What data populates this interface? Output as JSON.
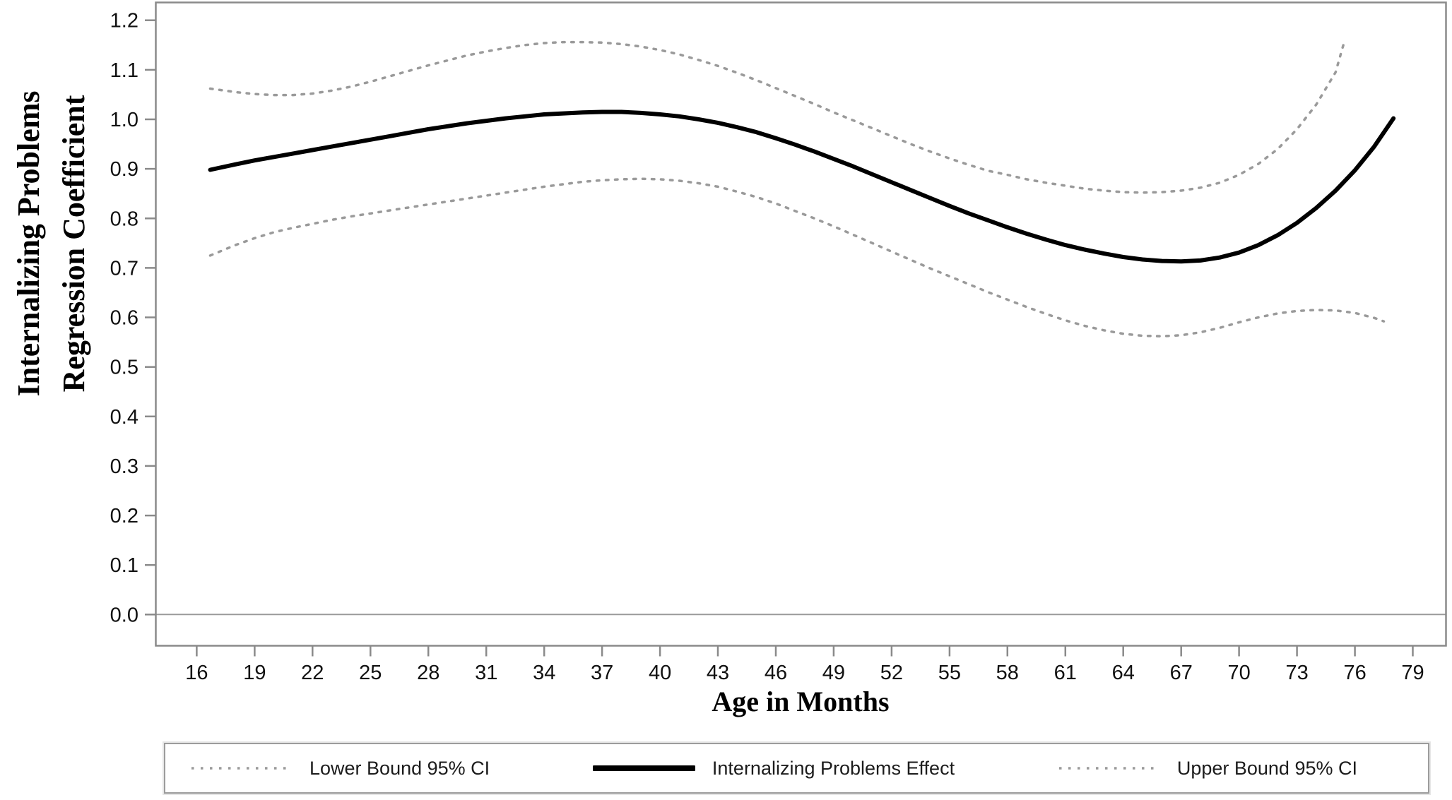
{
  "figure": {
    "background": "#ffffff"
  },
  "chart_data": {
    "type": "line",
    "title": "",
    "xlabel": "Age in Months",
    "ylabel": "Internalizing Problems Regression Coefficient",
    "ylabel_lines": [
      "Internalizing Problems",
      "Regression Coefficient"
    ],
    "x_ticks": [
      16,
      19,
      22,
      25,
      28,
      31,
      34,
      37,
      40,
      43,
      46,
      49,
      52,
      55,
      58,
      61,
      64,
      67,
      70,
      73,
      76,
      79
    ],
    "y_ticks": [
      "0.0",
      "0.1",
      "0.2",
      "0.3",
      "0.4",
      "0.5",
      "0.6",
      "0.7",
      "0.8",
      "0.9",
      "1.0",
      "1.1",
      "1.2"
    ],
    "xlim": [
      13.88,
      80.72
    ],
    "ylim": [
      -0.063,
      1.236
    ],
    "baseline": 0.0,
    "grid": "off",
    "legend_position": "bottom",
    "colors": {
      "frame": "#8a8a8a",
      "baseline": "#9a9a9a",
      "tick_label": "#111111",
      "ci_line": "#9a9a9a",
      "effect_line": "#000000"
    },
    "series": [
      {
        "name": "Lower Bound 95% CI",
        "style": "dotted",
        "color": "#9a9a9a",
        "width": 3.5,
        "points": [
          [
            16.7,
            0.725
          ],
          [
            18,
            0.746
          ],
          [
            19,
            0.76
          ],
          [
            20,
            0.772
          ],
          [
            21,
            0.781
          ],
          [
            22,
            0.789
          ],
          [
            23,
            0.797
          ],
          [
            24,
            0.804
          ],
          [
            25,
            0.81
          ],
          [
            26,
            0.816
          ],
          [
            27,
            0.822
          ],
          [
            28,
            0.828
          ],
          [
            29,
            0.834
          ],
          [
            30,
            0.84
          ],
          [
            31,
            0.846
          ],
          [
            32,
            0.852
          ],
          [
            33,
            0.858
          ],
          [
            34,
            0.864
          ],
          [
            35,
            0.869
          ],
          [
            36,
            0.874
          ],
          [
            37,
            0.877
          ],
          [
            38,
            0.879
          ],
          [
            39,
            0.88
          ],
          [
            40,
            0.879
          ],
          [
            41,
            0.876
          ],
          [
            42,
            0.871
          ],
          [
            43,
            0.864
          ],
          [
            44,
            0.854
          ],
          [
            45,
            0.843
          ],
          [
            46,
            0.83
          ],
          [
            47,
            0.815
          ],
          [
            48,
            0.8
          ],
          [
            49,
            0.784
          ],
          [
            50,
            0.767
          ],
          [
            51,
            0.75
          ],
          [
            52,
            0.733
          ],
          [
            53,
            0.716
          ],
          [
            54,
            0.699
          ],
          [
            55,
            0.683
          ],
          [
            56,
            0.667
          ],
          [
            57,
            0.651
          ],
          [
            58,
            0.636
          ],
          [
            59,
            0.621
          ],
          [
            60,
            0.607
          ],
          [
            61,
            0.594
          ],
          [
            62,
            0.583
          ],
          [
            63,
            0.574
          ],
          [
            64,
            0.567
          ],
          [
            65,
            0.563
          ],
          [
            66,
            0.562
          ],
          [
            67,
            0.564
          ],
          [
            68,
            0.57
          ],
          [
            69,
            0.579
          ],
          [
            70,
            0.59
          ],
          [
            71,
            0.6
          ],
          [
            72,
            0.608
          ],
          [
            73,
            0.613
          ],
          [
            74,
            0.615
          ],
          [
            75,
            0.614
          ],
          [
            76,
            0.609
          ],
          [
            77,
            0.599
          ],
          [
            77.5,
            0.592
          ]
        ]
      },
      {
        "name": "Internalizing Problems Effect",
        "style": "solid",
        "color": "#000000",
        "width": 6,
        "points": [
          [
            16.7,
            0.898
          ],
          [
            18,
            0.909
          ],
          [
            19,
            0.917
          ],
          [
            20,
            0.924
          ],
          [
            21,
            0.931
          ],
          [
            22,
            0.938
          ],
          [
            23,
            0.945
          ],
          [
            24,
            0.952
          ],
          [
            25,
            0.959
          ],
          [
            26,
            0.966
          ],
          [
            27,
            0.973
          ],
          [
            28,
            0.98
          ],
          [
            29,
            0.986
          ],
          [
            30,
            0.992
          ],
          [
            31,
            0.997
          ],
          [
            32,
            1.002
          ],
          [
            33,
            1.006
          ],
          [
            34,
            1.01
          ],
          [
            35,
            1.012
          ],
          [
            36,
            1.014
          ],
          [
            37,
            1.015
          ],
          [
            38,
            1.015
          ],
          [
            39,
            1.013
          ],
          [
            40,
            1.01
          ],
          [
            41,
            1.006
          ],
          [
            42,
            1.0
          ],
          [
            43,
            0.993
          ],
          [
            44,
            0.984
          ],
          [
            45,
            0.974
          ],
          [
            46,
            0.962
          ],
          [
            47,
            0.949
          ],
          [
            48,
            0.935
          ],
          [
            49,
            0.92
          ],
          [
            50,
            0.905
          ],
          [
            51,
            0.889
          ],
          [
            52,
            0.873
          ],
          [
            53,
            0.857
          ],
          [
            54,
            0.841
          ],
          [
            55,
            0.825
          ],
          [
            56,
            0.81
          ],
          [
            57,
            0.796
          ],
          [
            58,
            0.782
          ],
          [
            59,
            0.769
          ],
          [
            60,
            0.757
          ],
          [
            61,
            0.746
          ],
          [
            62,
            0.737
          ],
          [
            63,
            0.729
          ],
          [
            64,
            0.722
          ],
          [
            65,
            0.717
          ],
          [
            66,
            0.714
          ],
          [
            67,
            0.713
          ],
          [
            68,
            0.715
          ],
          [
            69,
            0.721
          ],
          [
            70,
            0.731
          ],
          [
            71,
            0.746
          ],
          [
            72,
            0.766
          ],
          [
            73,
            0.791
          ],
          [
            74,
            0.821
          ],
          [
            75,
            0.856
          ],
          [
            76,
            0.897
          ],
          [
            77,
            0.945
          ],
          [
            78,
            1.002
          ]
        ]
      },
      {
        "name": "Upper Bound 95% CI",
        "style": "dotted",
        "color": "#9a9a9a",
        "width": 3.5,
        "points": [
          [
            16.7,
            1.062
          ],
          [
            18,
            1.055
          ],
          [
            19,
            1.051
          ],
          [
            20,
            1.049
          ],
          [
            21,
            1.049
          ],
          [
            22,
            1.052
          ],
          [
            23,
            1.058
          ],
          [
            24,
            1.066
          ],
          [
            25,
            1.076
          ],
          [
            26,
            1.087
          ],
          [
            27,
            1.098
          ],
          [
            28,
            1.109
          ],
          [
            29,
            1.119
          ],
          [
            30,
            1.129
          ],
          [
            31,
            1.137
          ],
          [
            32,
            1.144
          ],
          [
            33,
            1.15
          ],
          [
            34,
            1.154
          ],
          [
            35,
            1.156
          ],
          [
            36,
            1.156
          ],
          [
            37,
            1.155
          ],
          [
            38,
            1.152
          ],
          [
            39,
            1.147
          ],
          [
            40,
            1.14
          ],
          [
            41,
            1.131
          ],
          [
            42,
            1.12
          ],
          [
            43,
            1.108
          ],
          [
            44,
            1.094
          ],
          [
            45,
            1.079
          ],
          [
            46,
            1.063
          ],
          [
            47,
            1.047
          ],
          [
            48,
            1.031
          ],
          [
            49,
            1.014
          ],
          [
            50,
            0.998
          ],
          [
            51,
            0.982
          ],
          [
            52,
            0.966
          ],
          [
            53,
            0.95
          ],
          [
            54,
            0.935
          ],
          [
            55,
            0.921
          ],
          [
            56,
            0.908
          ],
          [
            57,
            0.896
          ],
          [
            58,
            0.888
          ],
          [
            59,
            0.879
          ],
          [
            60,
            0.872
          ],
          [
            61,
            0.866
          ],
          [
            62,
            0.86
          ],
          [
            63,
            0.856
          ],
          [
            64,
            0.853
          ],
          [
            65,
            0.852
          ],
          [
            66,
            0.853
          ],
          [
            67,
            0.856
          ],
          [
            68,
            0.862
          ],
          [
            69,
            0.872
          ],
          [
            70,
            0.888
          ],
          [
            71,
            0.91
          ],
          [
            72,
            0.94
          ],
          [
            73,
            0.98
          ],
          [
            74,
            1.03
          ],
          [
            75,
            1.095
          ],
          [
            75.4,
            1.15
          ]
        ]
      }
    ]
  }
}
